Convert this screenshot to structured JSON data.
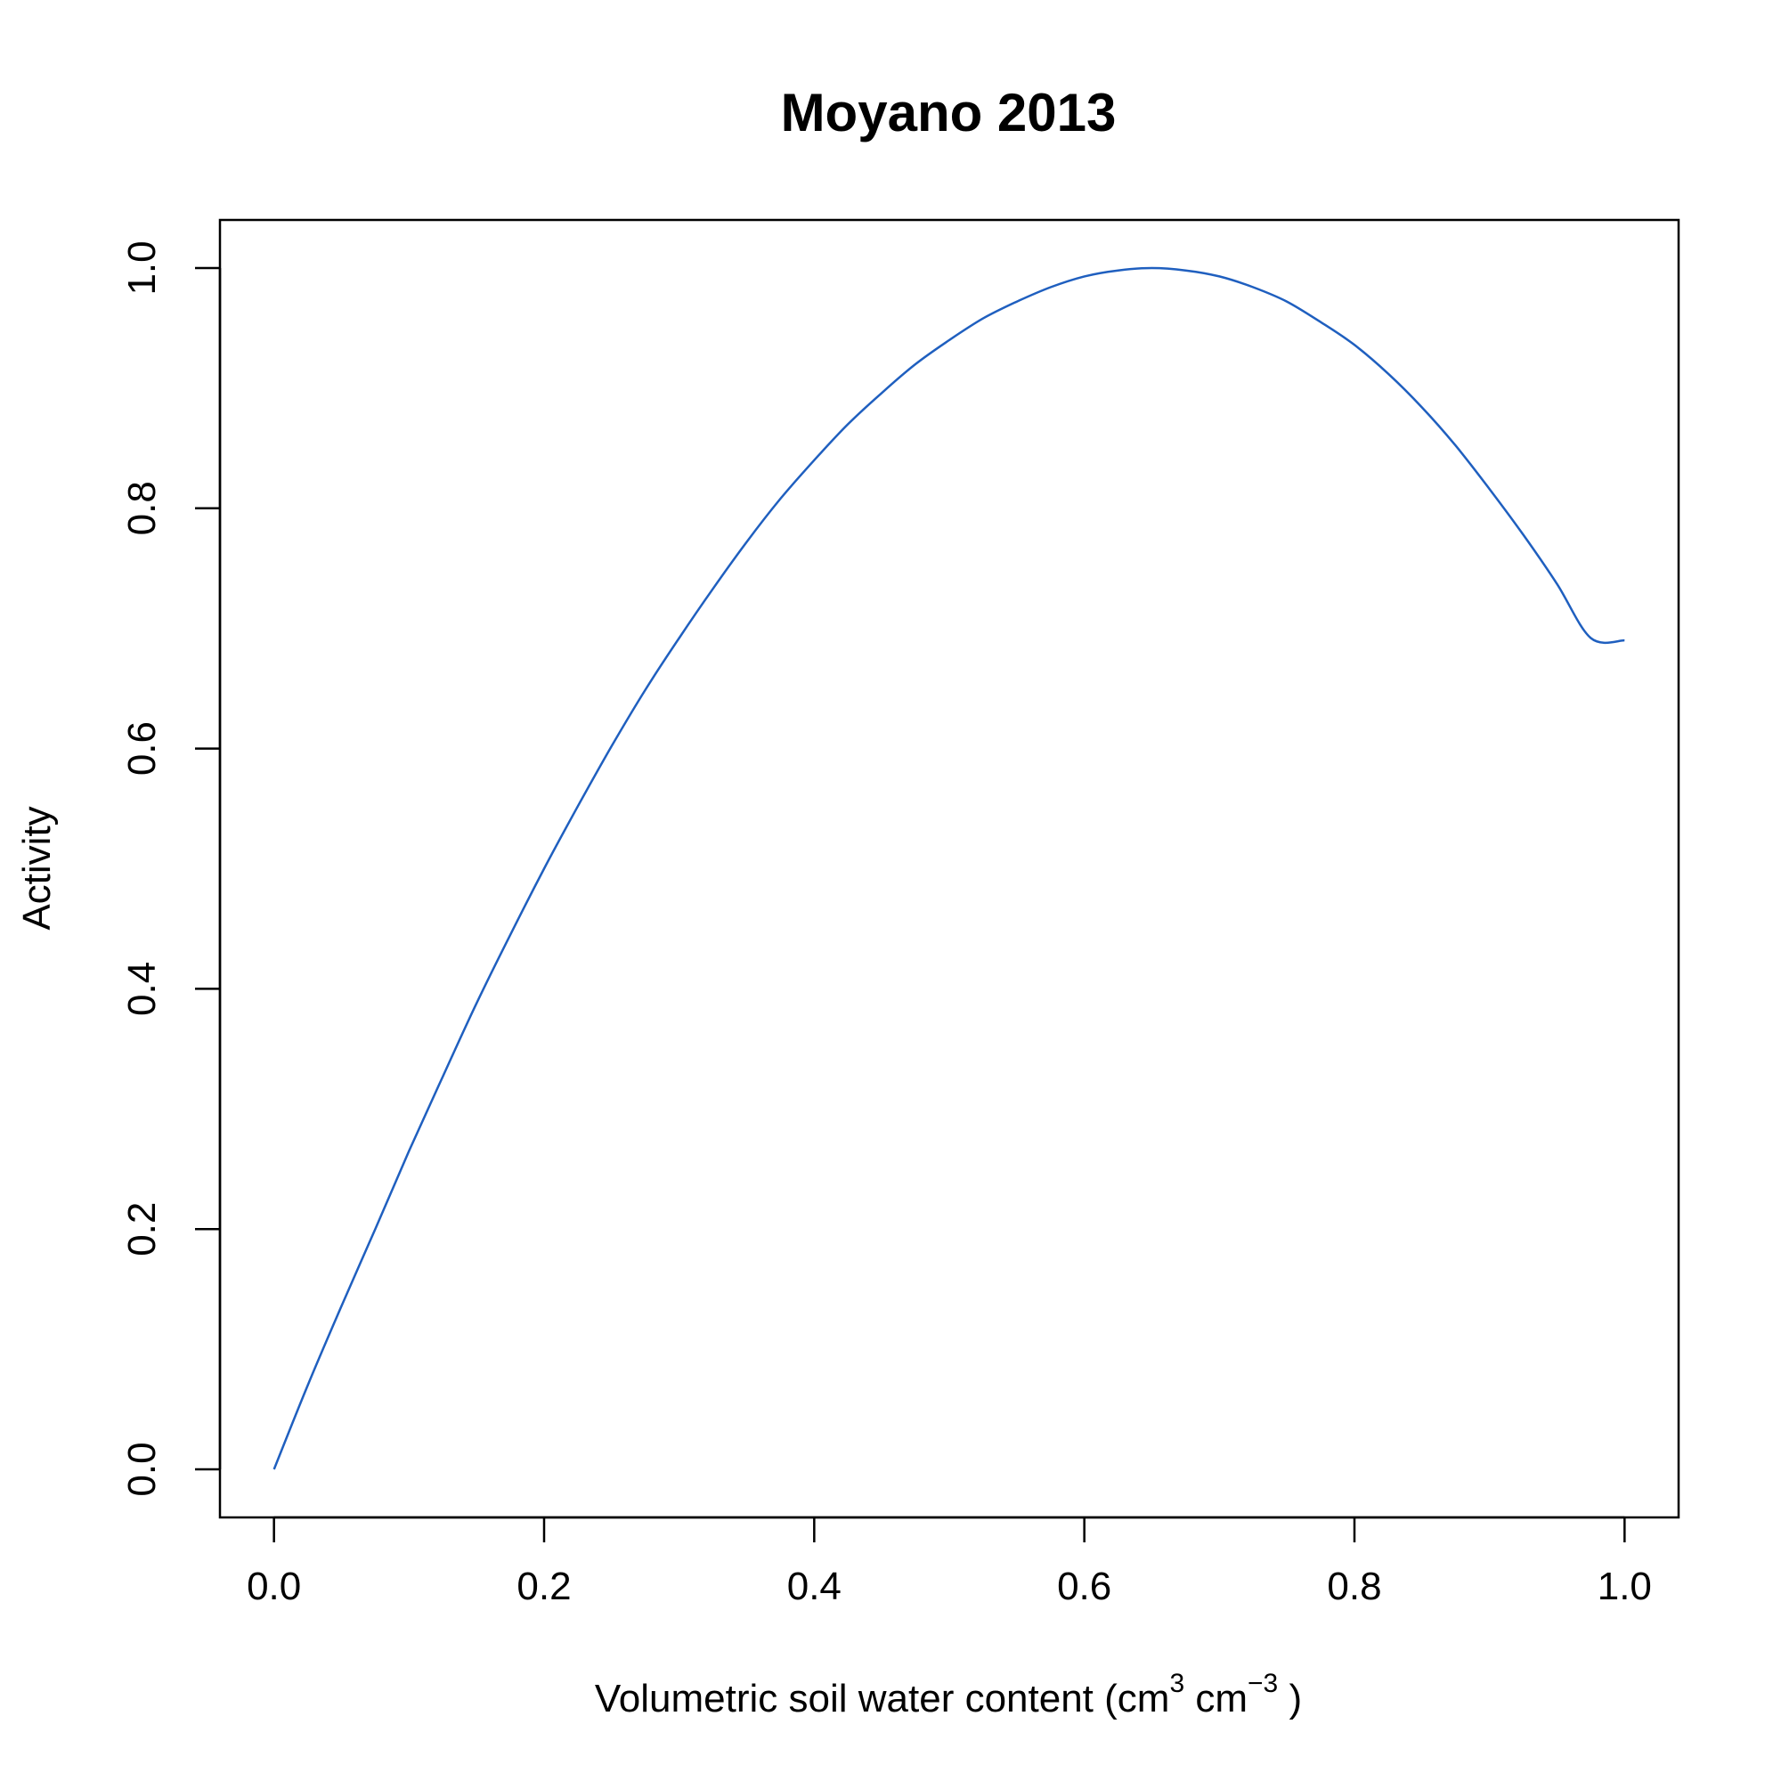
{
  "chart_data": {
    "type": "line",
    "title": "Moyano 2013",
    "xlabel": {
      "prefix": "Volumetric soil water content (cm",
      "sup1": "3",
      "middle": " cm",
      "sup2": "−3",
      "suffix": " )"
    },
    "ylabel": "Activity",
    "xlim": [
      -0.04,
      1.04
    ],
    "ylim": [
      -0.04,
      1.04
    ],
    "xticks": [
      0.0,
      0.2,
      0.4,
      0.6,
      0.8,
      1.0
    ],
    "xtick_labels": [
      "0.0",
      "0.2",
      "0.4",
      "0.6",
      "0.8",
      "1.0"
    ],
    "yticks": [
      0.0,
      0.2,
      0.4,
      0.6,
      0.8,
      1.0
    ],
    "ytick_labels": [
      "0.0",
      "0.2",
      "0.4",
      "0.6",
      "0.8",
      "1.0"
    ],
    "grid": false,
    "series": [
      {
        "color": "#1f5fbf",
        "x": [
          0.0,
          0.025,
          0.05,
          0.075,
          0.1,
          0.125,
          0.15,
          0.175,
          0.2,
          0.225,
          0.25,
          0.275,
          0.3,
          0.325,
          0.35,
          0.375,
          0.4,
          0.425,
          0.45,
          0.475,
          0.5,
          0.525,
          0.55,
          0.575,
          0.6,
          0.625,
          0.65,
          0.675,
          0.7,
          0.725,
          0.75,
          0.775,
          0.8,
          0.825,
          0.85,
          0.875,
          0.9,
          0.925,
          0.95,
          0.975,
          1.0
        ],
        "y": [
          0.0,
          0.07,
          0.136,
          0.2,
          0.265,
          0.327,
          0.388,
          0.445,
          0.5,
          0.552,
          0.602,
          0.649,
          0.692,
          0.733,
          0.772,
          0.808,
          0.84,
          0.87,
          0.896,
          0.92,
          0.94,
          0.958,
          0.972,
          0.984,
          0.993,
          0.998,
          1.0,
          0.998,
          0.993,
          0.984,
          0.972,
          0.955,
          0.936,
          0.912,
          0.884,
          0.852,
          0.816,
          0.778,
          0.737,
          0.692,
          0.69
        ]
      }
    ]
  }
}
